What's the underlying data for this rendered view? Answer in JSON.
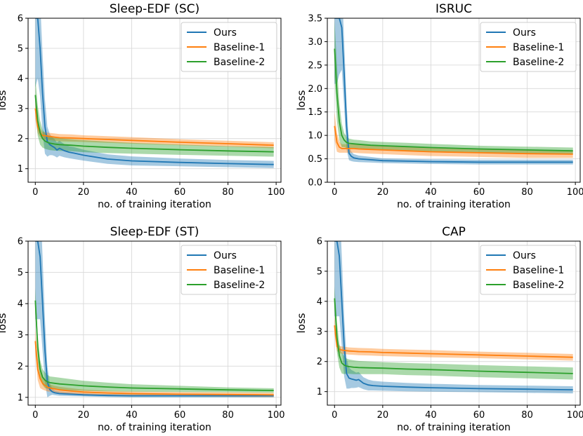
{
  "figure": {
    "series_colors": [
      "#1f77b4",
      "#ff7f0e",
      "#2ca02c"
    ]
  },
  "chart_data": [
    {
      "type": "line",
      "title": "Sleep-EDF (SC)",
      "xlabel": "no. of training iteration",
      "ylabel": "loss",
      "xlim": [
        -3,
        102
      ],
      "ylim": [
        0.55,
        6
      ],
      "xticks": [
        0,
        20,
        40,
        60,
        80,
        100
      ],
      "xtick_labels": [
        "0",
        "20",
        "40",
        "60",
        "80",
        "100"
      ],
      "yticks": [
        1,
        2,
        3,
        4,
        5,
        6
      ],
      "ytick_labels": [
        "1",
        "2",
        "3",
        "4",
        "5",
        "6"
      ],
      "grid": true,
      "legend": "top-right",
      "series": [
        {
          "name": "Ours",
          "color": "#1f77b4",
          "x": [
            0,
            1,
            2,
            3,
            4,
            5,
            6,
            7,
            8,
            9,
            10,
            12,
            14,
            16,
            20,
            30,
            40,
            60,
            80,
            99
          ],
          "mean": [
            6.0,
            6.0,
            5.0,
            3.5,
            2.4,
            1.9,
            1.8,
            1.75,
            1.7,
            1.62,
            1.68,
            1.6,
            1.55,
            1.52,
            1.45,
            1.32,
            1.26,
            1.21,
            1.17,
            1.14
          ],
          "band": [
            2.3,
            2.0,
            1.6,
            1.3,
            0.9,
            0.5,
            0.35,
            0.3,
            0.28,
            0.25,
            0.25,
            0.22,
            0.2,
            0.2,
            0.18,
            0.16,
            0.15,
            0.13,
            0.12,
            0.12
          ]
        },
        {
          "name": "Baseline-1",
          "color": "#ff7f0e",
          "x": [
            0,
            1,
            2,
            3,
            4,
            5,
            6,
            8,
            10,
            15,
            20,
            30,
            40,
            60,
            80,
            99
          ],
          "mean": [
            3.0,
            2.4,
            2.2,
            2.1,
            2.1,
            2.08,
            2.07,
            2.05,
            2.03,
            2.02,
            2.0,
            1.97,
            1.94,
            1.88,
            1.83,
            1.78
          ],
          "band": [
            0.35,
            0.22,
            0.14,
            0.12,
            0.12,
            0.12,
            0.12,
            0.12,
            0.12,
            0.12,
            0.11,
            0.11,
            0.11,
            0.1,
            0.1,
            0.1
          ]
        },
        {
          "name": "Baseline-2",
          "color": "#2ca02c",
          "x": [
            0,
            1,
            2,
            3,
            4,
            5,
            6,
            8,
            10,
            15,
            20,
            30,
            40,
            60,
            80,
            99
          ],
          "mean": [
            3.45,
            2.6,
            2.2,
            2.0,
            1.92,
            1.88,
            1.85,
            1.82,
            1.8,
            1.78,
            1.75,
            1.71,
            1.68,
            1.63,
            1.59,
            1.56
          ],
          "band": [
            0.6,
            0.5,
            0.4,
            0.3,
            0.26,
            0.24,
            0.23,
            0.22,
            0.21,
            0.2,
            0.2,
            0.19,
            0.18,
            0.17,
            0.16,
            0.16
          ]
        }
      ]
    },
    {
      "type": "line",
      "title": "ISRUC",
      "xlabel": "no. of training iteration",
      "ylabel": "loss",
      "xlim": [
        -3,
        102
      ],
      "ylim": [
        0,
        3.5
      ],
      "xticks": [
        0,
        20,
        40,
        60,
        80,
        100
      ],
      "xtick_labels": [
        "0",
        "20",
        "40",
        "60",
        "80",
        "100"
      ],
      "yticks": [
        0,
        0.5,
        1.0,
        1.5,
        2.0,
        2.5,
        3.0,
        3.5
      ],
      "ytick_labels": [
        "0.0",
        "0.5",
        "1.0",
        "1.5",
        "2.0",
        "2.5",
        "3.0",
        "3.5"
      ],
      "grid": true,
      "legend": "top-right",
      "series": [
        {
          "name": "Ours",
          "color": "#1f77b4",
          "x": [
            0,
            1,
            2,
            3,
            4,
            5,
            6,
            7,
            8,
            10,
            15,
            20,
            30,
            40,
            60,
            80,
            99
          ],
          "mean": [
            3.5,
            3.5,
            3.5,
            3.3,
            2.3,
            1.2,
            0.62,
            0.55,
            0.52,
            0.5,
            0.48,
            0.46,
            0.45,
            0.44,
            0.43,
            0.43,
            0.43
          ],
          "band": [
            1.4,
            1.4,
            1.2,
            0.9,
            0.7,
            0.5,
            0.15,
            0.1,
            0.08,
            0.07,
            0.06,
            0.05,
            0.05,
            0.05,
            0.05,
            0.05,
            0.05
          ]
        },
        {
          "name": "Baseline-1",
          "color": "#ff7f0e",
          "x": [
            0,
            1,
            2,
            3,
            4,
            5,
            6,
            8,
            10,
            15,
            20,
            30,
            40,
            60,
            80,
            99
          ],
          "mean": [
            1.2,
            0.85,
            0.75,
            0.72,
            0.72,
            0.72,
            0.72,
            0.72,
            0.71,
            0.7,
            0.69,
            0.67,
            0.65,
            0.63,
            0.61,
            0.6
          ],
          "band": [
            0.3,
            0.2,
            0.12,
            0.09,
            0.09,
            0.09,
            0.09,
            0.09,
            0.09,
            0.09,
            0.09,
            0.09,
            0.09,
            0.09,
            0.09,
            0.08
          ]
        },
        {
          "name": "Baseline-2",
          "color": "#2ca02c",
          "x": [
            0,
            1,
            2,
            3,
            4,
            5,
            6,
            8,
            10,
            15,
            20,
            30,
            40,
            60,
            80,
            99
          ],
          "mean": [
            2.85,
            1.9,
            1.3,
            1.0,
            0.9,
            0.85,
            0.83,
            0.82,
            0.81,
            0.79,
            0.78,
            0.76,
            0.74,
            0.71,
            0.69,
            0.67
          ],
          "band": [
            0.6,
            0.6,
            0.4,
            0.25,
            0.15,
            0.12,
            0.1,
            0.09,
            0.09,
            0.08,
            0.08,
            0.08,
            0.08,
            0.07,
            0.07,
            0.07
          ]
        }
      ]
    },
    {
      "type": "line",
      "title": "Sleep-EDF (ST)",
      "xlabel": "no. of training iteration",
      "ylabel": "loss",
      "xlim": [
        -3,
        102
      ],
      "ylim": [
        0.75,
        6
      ],
      "xticks": [
        0,
        20,
        40,
        60,
        80,
        100
      ],
      "xtick_labels": [
        "0",
        "20",
        "40",
        "60",
        "80",
        "100"
      ],
      "yticks": [
        1,
        2,
        3,
        4,
        5,
        6
      ],
      "ytick_labels": [
        "1",
        "2",
        "3",
        "4",
        "5",
        "6"
      ],
      "grid": true,
      "legend": "top-right",
      "series": [
        {
          "name": "Ours",
          "color": "#1f77b4",
          "x": [
            0,
            1,
            2,
            3,
            4,
            5,
            6,
            7,
            8,
            10,
            15,
            20,
            30,
            40,
            60,
            80,
            99
          ],
          "mean": [
            6.0,
            6.0,
            5.5,
            4.0,
            2.5,
            1.5,
            1.25,
            1.18,
            1.15,
            1.12,
            1.1,
            1.08,
            1.06,
            1.05,
            1.05,
            1.05,
            1.05
          ],
          "band": [
            2.5,
            2.5,
            2.0,
            1.5,
            1.0,
            0.5,
            0.2,
            0.1,
            0.08,
            0.07,
            0.06,
            0.05,
            0.05,
            0.05,
            0.05,
            0.05,
            0.05
          ]
        },
        {
          "name": "Baseline-1",
          "color": "#ff7f0e",
          "x": [
            0,
            1,
            2,
            3,
            4,
            5,
            6,
            8,
            10,
            15,
            20,
            30,
            40,
            60,
            80,
            99
          ],
          "mean": [
            2.8,
            1.9,
            1.6,
            1.45,
            1.38,
            1.33,
            1.3,
            1.27,
            1.24,
            1.2,
            1.17,
            1.14,
            1.12,
            1.1,
            1.09,
            1.08
          ],
          "band": [
            0.4,
            0.35,
            0.3,
            0.2,
            0.16,
            0.14,
            0.12,
            0.1,
            0.1,
            0.09,
            0.08,
            0.07,
            0.07,
            0.07,
            0.07,
            0.07
          ]
        },
        {
          "name": "Baseline-2",
          "color": "#2ca02c",
          "x": [
            0,
            1,
            2,
            3,
            4,
            5,
            6,
            8,
            10,
            15,
            20,
            30,
            40,
            60,
            80,
            99
          ],
          "mean": [
            4.1,
            2.6,
            1.9,
            1.65,
            1.55,
            1.5,
            1.47,
            1.45,
            1.43,
            1.4,
            1.37,
            1.33,
            1.3,
            1.27,
            1.24,
            1.22
          ],
          "band": [
            0.4,
            0.4,
            0.3,
            0.25,
            0.25,
            0.22,
            0.2,
            0.2,
            0.2,
            0.18,
            0.16,
            0.14,
            0.12,
            0.1,
            0.08,
            0.07
          ]
        }
      ]
    },
    {
      "type": "line",
      "title": "CAP",
      "xlabel": "no. of training iteration",
      "ylabel": "loss",
      "xlim": [
        -3,
        102
      ],
      "ylim": [
        0.55,
        6
      ],
      "xticks": [
        0,
        20,
        40,
        60,
        80,
        100
      ],
      "xtick_labels": [
        "0",
        "20",
        "40",
        "60",
        "80",
        "100"
      ],
      "yticks": [
        1,
        2,
        3,
        4,
        5,
        6
      ],
      "ytick_labels": [
        "1",
        "2",
        "3",
        "4",
        "5",
        "6"
      ],
      "grid": true,
      "legend": "top-right",
      "series": [
        {
          "name": "Ours",
          "color": "#1f77b4",
          "x": [
            0,
            1,
            2,
            3,
            4,
            5,
            6,
            7,
            8,
            9,
            10,
            12,
            14,
            16,
            20,
            30,
            40,
            60,
            80,
            99
          ],
          "mean": [
            6.0,
            6.0,
            5.5,
            4.0,
            2.5,
            1.6,
            1.45,
            1.42,
            1.4,
            1.38,
            1.4,
            1.28,
            1.22,
            1.2,
            1.18,
            1.15,
            1.13,
            1.1,
            1.08,
            1.06
          ],
          "band": [
            2.5,
            2.5,
            2.0,
            1.5,
            1.0,
            0.5,
            0.35,
            0.3,
            0.28,
            0.25,
            0.25,
            0.2,
            0.18,
            0.16,
            0.15,
            0.14,
            0.13,
            0.12,
            0.12,
            0.12
          ]
        },
        {
          "name": "Baseline-1",
          "color": "#ff7f0e",
          "x": [
            0,
            1,
            2,
            3,
            4,
            5,
            6,
            8,
            10,
            15,
            20,
            30,
            40,
            60,
            80,
            99
          ],
          "mean": [
            3.2,
            2.5,
            2.4,
            2.38,
            2.37,
            2.36,
            2.35,
            2.34,
            2.33,
            2.32,
            2.3,
            2.28,
            2.26,
            2.22,
            2.18,
            2.14
          ],
          "band": [
            0.3,
            0.15,
            0.12,
            0.12,
            0.12,
            0.12,
            0.12,
            0.12,
            0.12,
            0.12,
            0.12,
            0.12,
            0.12,
            0.11,
            0.11,
            0.11
          ]
        },
        {
          "name": "Baseline-2",
          "color": "#2ca02c",
          "x": [
            0,
            1,
            2,
            3,
            4,
            5,
            6,
            8,
            10,
            15,
            20,
            30,
            40,
            60,
            80,
            99
          ],
          "mean": [
            4.1,
            2.8,
            2.2,
            1.95,
            1.88,
            1.85,
            1.83,
            1.81,
            1.8,
            1.79,
            1.78,
            1.75,
            1.73,
            1.68,
            1.64,
            1.6
          ],
          "band": [
            0.4,
            0.5,
            0.4,
            0.35,
            0.3,
            0.25,
            0.24,
            0.23,
            0.22,
            0.21,
            0.2,
            0.2,
            0.2,
            0.2,
            0.2,
            0.2
          ]
        }
      ]
    }
  ]
}
